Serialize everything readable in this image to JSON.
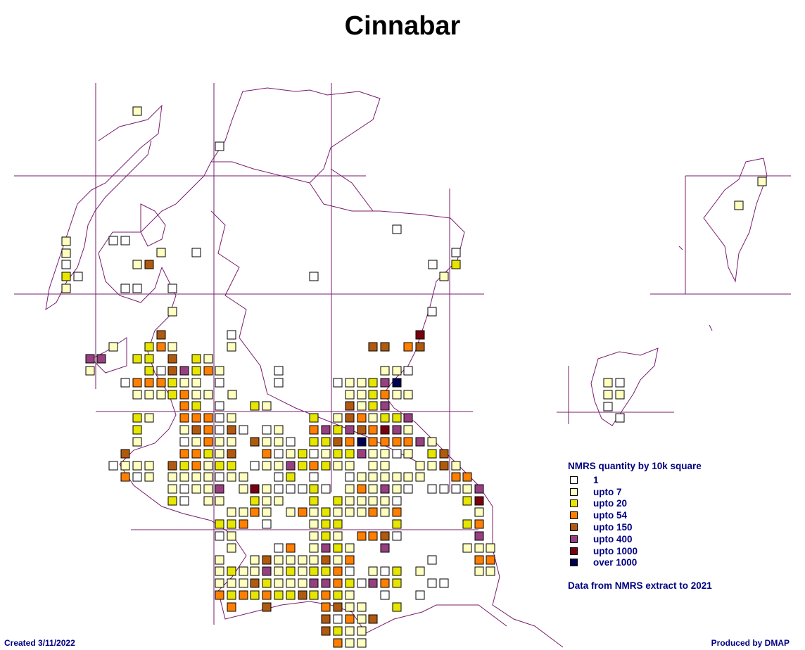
{
  "title": "Cinnabar",
  "legend": {
    "title": "NMRS quantity by 10k square",
    "classes": [
      {
        "key": "c1",
        "label": "1",
        "color": "#ffffff"
      },
      {
        "key": "c7",
        "label": "upto 7",
        "color": "#ffffc0"
      },
      {
        "key": "c20",
        "label": "upto 20",
        "color": "#e6e600"
      },
      {
        "key": "c54",
        "label": "upto 54",
        "color": "#ff8000"
      },
      {
        "key": "c150",
        "label": "upto 150",
        "color": "#b05a10"
      },
      {
        "key": "c400",
        "label": "upto 400",
        "color": "#964080"
      },
      {
        "key": "c1000",
        "label": "upto 1000",
        "color": "#7a0010"
      },
      {
        "key": "c1001",
        "label": "over 1000",
        "color": "#000050"
      }
    ],
    "source_note": "Data from NMRS extract to 2021"
  },
  "footer": {
    "created": "Created 3/11/2022",
    "produced": "Produced by DMAP"
  },
  "colors": {
    "grid_line": "#7a1c6e",
    "coastline": "#7a1c6e",
    "legend_text": "#000080"
  }
}
